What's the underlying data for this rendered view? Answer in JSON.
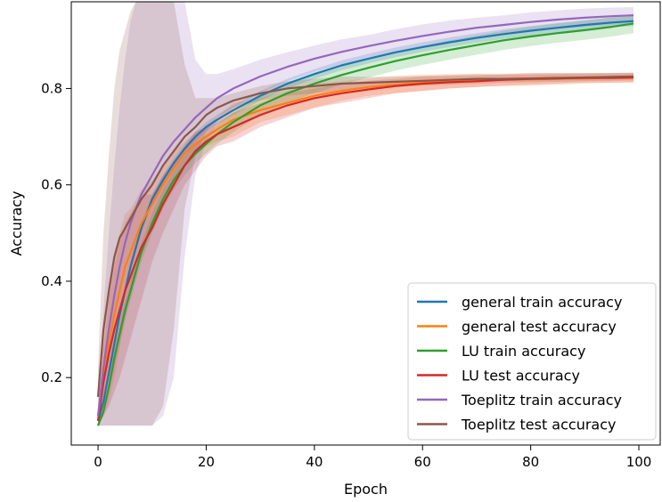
{
  "chart_data": {
    "type": "line",
    "title": "",
    "xlabel": "Epoch",
    "ylabel": "Accuracy",
    "xlim": [
      -4.95,
      103.95
    ],
    "ylim": [
      0.06,
      0.98
    ],
    "xticks": [
      0,
      20,
      40,
      60,
      80,
      100
    ],
    "yticks": [
      0.2,
      0.4,
      0.6,
      0.8
    ],
    "xtick_labels": [
      "0",
      "20",
      "40",
      "60",
      "80",
      "100"
    ],
    "ytick_labels": [
      "0.2",
      "0.4",
      "0.6",
      "0.8"
    ],
    "grid": false,
    "legend_position": "lower-right",
    "x": [
      0,
      1,
      2,
      3,
      4,
      5,
      6,
      7,
      8,
      9,
      10,
      12,
      14,
      16,
      18,
      20,
      22,
      25,
      30,
      35,
      40,
      45,
      50,
      55,
      60,
      65,
      70,
      75,
      80,
      85,
      90,
      95,
      99
    ],
    "series": [
      {
        "name": "general train accuracy",
        "color": "#1f77b4",
        "values": [
          0.11,
          0.15,
          0.21,
          0.27,
          0.33,
          0.38,
          0.43,
          0.47,
          0.51,
          0.54,
          0.57,
          0.61,
          0.645,
          0.675,
          0.7,
          0.72,
          0.735,
          0.755,
          0.785,
          0.81,
          0.83,
          0.848,
          0.862,
          0.875,
          0.886,
          0.896,
          0.905,
          0.913,
          0.92,
          0.926,
          0.932,
          0.937,
          0.94
        ],
        "band": [
          0.1,
          0.15,
          0.2,
          0.26,
          0.32,
          0.37,
          0.42,
          0.46,
          0.5,
          0.53,
          0.56,
          0.6,
          0.635,
          0.665,
          0.69,
          0.71,
          0.725,
          0.745,
          0.775,
          0.8,
          0.82,
          0.838,
          0.852,
          0.865,
          0.876,
          0.886,
          0.895,
          0.903,
          0.91,
          0.916,
          0.922,
          0.927,
          0.93
        ]
      },
      {
        "name": "general test accuracy",
        "color": "#ff7f0e",
        "values": [
          0.12,
          0.2,
          0.27,
          0.33,
          0.38,
          0.43,
          0.46,
          0.49,
          0.52,
          0.54,
          0.56,
          0.6,
          0.635,
          0.665,
          0.685,
          0.7,
          0.715,
          0.735,
          0.755,
          0.77,
          0.785,
          0.795,
          0.803,
          0.808,
          0.812,
          0.815,
          0.817,
          0.818,
          0.819,
          0.82,
          0.821,
          0.822,
          0.822
        ],
        "band": [
          0.1,
          0.12,
          0.15,
          0.2,
          0.26,
          0.32,
          0.37,
          0.41,
          0.45,
          0.48,
          0.51,
          0.56,
          0.6,
          0.64,
          0.66,
          0.68,
          0.69,
          0.7,
          0.73,
          0.745,
          0.76,
          0.775,
          0.785,
          0.79,
          0.795,
          0.8,
          0.803,
          0.805,
          0.806,
          0.808,
          0.81,
          0.812,
          0.812
        ]
      },
      {
        "name": "LU train accuracy",
        "color": "#2ca02c",
        "values": [
          0.1,
          0.13,
          0.18,
          0.24,
          0.29,
          0.34,
          0.38,
          0.42,
          0.46,
          0.49,
          0.52,
          0.57,
          0.61,
          0.64,
          0.665,
          0.685,
          0.705,
          0.73,
          0.765,
          0.79,
          0.81,
          0.828,
          0.843,
          0.857,
          0.869,
          0.88,
          0.89,
          0.9,
          0.908,
          0.915,
          0.921,
          0.928,
          0.935
        ],
        "band": [
          0.1,
          0.12,
          0.17,
          0.22,
          0.27,
          0.32,
          0.36,
          0.4,
          0.44,
          0.47,
          0.5,
          0.55,
          0.59,
          0.62,
          0.645,
          0.665,
          0.685,
          0.71,
          0.745,
          0.77,
          0.79,
          0.808,
          0.823,
          0.837,
          0.849,
          0.86,
          0.87,
          0.88,
          0.888,
          0.895,
          0.901,
          0.908,
          0.915
        ]
      },
      {
        "name": "LU test accuracy",
        "color": "#d62728",
        "values": [
          0.11,
          0.19,
          0.25,
          0.3,
          0.34,
          0.38,
          0.41,
          0.44,
          0.47,
          0.49,
          0.51,
          0.56,
          0.6,
          0.64,
          0.67,
          0.69,
          0.705,
          0.72,
          0.745,
          0.765,
          0.78,
          0.79,
          0.798,
          0.805,
          0.81,
          0.813,
          0.815,
          0.818,
          0.82,
          0.821,
          0.822,
          0.822,
          0.823
        ],
        "band": [
          0.1,
          0.12,
          0.14,
          0.17,
          0.2,
          0.24,
          0.28,
          0.32,
          0.36,
          0.4,
          0.44,
          0.5,
          0.55,
          0.6,
          0.63,
          0.66,
          0.68,
          0.69,
          0.72,
          0.74,
          0.76,
          0.77,
          0.78,
          0.79,
          0.795,
          0.8,
          0.803,
          0.806,
          0.808,
          0.81,
          0.812,
          0.812,
          0.813
        ]
      },
      {
        "name": "Toeplitz train accuracy",
        "color": "#9467bd",
        "values": [
          0.12,
          0.22,
          0.3,
          0.37,
          0.43,
          0.48,
          0.52,
          0.55,
          0.58,
          0.6,
          0.62,
          0.66,
          0.69,
          0.715,
          0.74,
          0.76,
          0.78,
          0.8,
          0.825,
          0.845,
          0.862,
          0.876,
          0.888,
          0.899,
          0.909,
          0.918,
          0.926,
          0.932,
          0.938,
          0.943,
          0.947,
          0.95,
          0.952
        ],
        "band": [
          0.1,
          0.1,
          0.1,
          0.1,
          0.1,
          0.1,
          0.1,
          0.1,
          0.1,
          0.1,
          0.1,
          0.12,
          0.2,
          0.45,
          0.62,
          0.69,
          0.73,
          0.76,
          0.79,
          0.815,
          0.835,
          0.85,
          0.865,
          0.875,
          0.885,
          0.895,
          0.905,
          0.912,
          0.918,
          0.924,
          0.928,
          0.932,
          0.935
        ]
      },
      {
        "name": "Toeplitz test accuracy",
        "color": "#8c564b",
        "values": [
          0.16,
          0.3,
          0.38,
          0.45,
          0.49,
          0.51,
          0.53,
          0.55,
          0.57,
          0.585,
          0.6,
          0.64,
          0.67,
          0.7,
          0.72,
          0.745,
          0.76,
          0.775,
          0.79,
          0.8,
          0.805,
          0.81,
          0.812,
          0.814,
          0.816,
          0.818,
          0.82,
          0.82,
          0.821,
          0.822,
          0.823,
          0.824,
          0.825
        ],
        "band": [
          0.1,
          0.1,
          0.1,
          0.1,
          0.1,
          0.1,
          0.1,
          0.1,
          0.1,
          0.1,
          0.1,
          0.14,
          0.3,
          0.55,
          0.66,
          0.71,
          0.74,
          0.76,
          0.775,
          0.785,
          0.79,
          0.795,
          0.8,
          0.803,
          0.806,
          0.808,
          0.81,
          0.812,
          0.813,
          0.814,
          0.815,
          0.816,
          0.817
        ]
      }
    ]
  }
}
